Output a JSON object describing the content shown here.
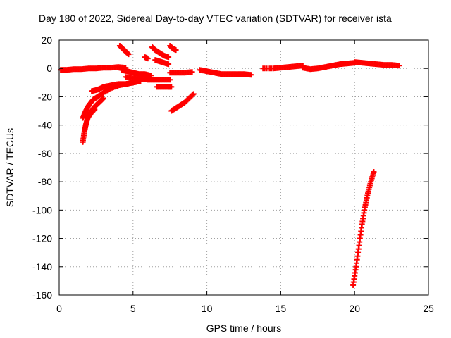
{
  "chart_data": {
    "type": "scatter",
    "title": "Day 180 of 2022, Sidereal Day-to-day VTEC variation (SDTVAR) for receiver ista",
    "xlabel": "GPS time / hours",
    "ylabel": "SDTVAR / TECUs",
    "xlim": [
      0,
      25
    ],
    "ylim": [
      -160,
      20
    ],
    "xticks": [
      "0",
      "5",
      "10",
      "15",
      "20",
      "25"
    ],
    "yticks": [
      "20",
      "0",
      "-20",
      "-40",
      "-60",
      "-80",
      "-100",
      "-120",
      "-140",
      "-160"
    ],
    "grid": true,
    "marker": "+",
    "color": "#ff0000",
    "series": [
      {
        "segments": [
          [
            [
              0.1,
              -1
            ],
            [
              0.5,
              -1
            ],
            [
              1,
              -0.5
            ],
            [
              1.5,
              -0.5
            ],
            [
              2,
              0
            ],
            [
              2.5,
              0
            ],
            [
              3,
              0.5
            ],
            [
              3.5,
              0.5
            ],
            [
              4,
              1
            ],
            [
              4.5,
              0.5
            ]
          ],
          [
            [
              4.2,
              -1
            ],
            [
              4.6,
              -2
            ],
            [
              5,
              -3
            ],
            [
              5.4,
              -4
            ],
            [
              5.8,
              -4
            ],
            [
              6.2,
              -5
            ]
          ],
          [
            [
              4.5,
              -6
            ],
            [
              5,
              -7
            ],
            [
              5.5,
              -7
            ],
            [
              6,
              -8
            ],
            [
              6.5,
              -8
            ],
            [
              7,
              -8
            ],
            [
              7.5,
              -8
            ]
          ],
          [
            [
              1.6,
              -52
            ],
            [
              1.7,
              -45
            ],
            [
              1.8,
              -40
            ],
            [
              1.9,
              -36
            ],
            [
              2,
              -33
            ],
            [
              2.2,
              -30
            ],
            [
              2.4,
              -27
            ],
            [
              2.6,
              -25
            ],
            [
              2.8,
              -23
            ],
            [
              3,
              -21
            ]
          ],
          [
            [
              1.6,
              -35
            ],
            [
              1.8,
              -30
            ],
            [
              2,
              -26
            ],
            [
              2.3,
              -22
            ],
            [
              2.6,
              -20
            ],
            [
              3,
              -17
            ],
            [
              3.5,
              -14
            ],
            [
              4,
              -12
            ],
            [
              4.5,
              -11
            ],
            [
              5,
              -10
            ],
            [
              5.5,
              -9
            ]
          ],
          [
            [
              2,
              -34
            ],
            [
              2.2,
              -31
            ],
            [
              2.4,
              -29
            ]
          ],
          [
            [
              2.2,
              -16
            ],
            [
              2.6,
              -15
            ],
            [
              3,
              -13
            ],
            [
              3.5,
              -12
            ],
            [
              4,
              -11
            ],
            [
              4.5,
              -11
            ],
            [
              5,
              -10
            ],
            [
              5.5,
              -9
            ]
          ],
          [
            [
              4.1,
              16
            ],
            [
              4.3,
              14
            ],
            [
              4.5,
              12
            ],
            [
              4.7,
              10
            ]
          ],
          [
            [
              6.3,
              15
            ],
            [
              6.5,
              13
            ],
            [
              6.8,
              11
            ],
            [
              7.1,
              9
            ],
            [
              7.4,
              8
            ]
          ],
          [
            [
              7.5,
              16
            ],
            [
              7.7,
              14
            ],
            [
              7.9,
              13
            ]
          ],
          [
            [
              5.8,
              8
            ],
            [
              6,
              7
            ]
          ],
          [
            [
              6.5,
              6
            ],
            [
              6.8,
              5
            ],
            [
              7.1,
              4
            ],
            [
              7.4,
              3
            ]
          ],
          [
            [
              6.6,
              -13
            ],
            [
              7,
              -13
            ],
            [
              7.4,
              -13
            ],
            [
              7.6,
              -13
            ]
          ],
          [
            [
              7.5,
              -3
            ],
            [
              8,
              -3
            ],
            [
              8.5,
              -3
            ],
            [
              9,
              -2.5
            ]
          ],
          [
            [
              7.6,
              -30
            ],
            [
              7.9,
              -28
            ],
            [
              8.2,
              -26
            ],
            [
              8.5,
              -24
            ],
            [
              8.8,
              -21
            ],
            [
              9.1,
              -18
            ]
          ],
          [
            [
              9.5,
              -1
            ],
            [
              10,
              -2
            ],
            [
              10.5,
              -3
            ],
            [
              11,
              -4
            ],
            [
              11.5,
              -4
            ],
            [
              12,
              -4
            ],
            [
              12.5,
              -4
            ],
            [
              13,
              -4.5
            ]
          ],
          [
            [
              13.8,
              0
            ],
            [
              14.5,
              0
            ],
            [
              15,
              0.5
            ],
            [
              15.5,
              1
            ],
            [
              16,
              1.5
            ],
            [
              16.5,
              2
            ]
          ],
          [
            [
              16.5,
              0.5
            ],
            [
              17,
              -0.5
            ],
            [
              17.5,
              0
            ],
            [
              18,
              1
            ],
            [
              18.5,
              2
            ],
            [
              19,
              3
            ],
            [
              19.5,
              3.5
            ],
            [
              20,
              4
            ]
          ],
          [
            [
              20,
              4.5
            ],
            [
              20.5,
              4
            ],
            [
              21,
              3.5
            ],
            [
              21.5,
              3
            ],
            [
              22,
              2.5
            ],
            [
              22.5,
              2.5
            ],
            [
              23,
              2
            ]
          ],
          [
            [
              19.9,
              -153
            ],
            [
              20.1,
              -140
            ],
            [
              20.3,
              -125
            ],
            [
              20.5,
              -110
            ],
            [
              20.7,
              -98
            ],
            [
              20.9,
              -88
            ],
            [
              21.1,
              -80
            ],
            [
              21.3,
              -73
            ]
          ]
        ]
      }
    ]
  }
}
